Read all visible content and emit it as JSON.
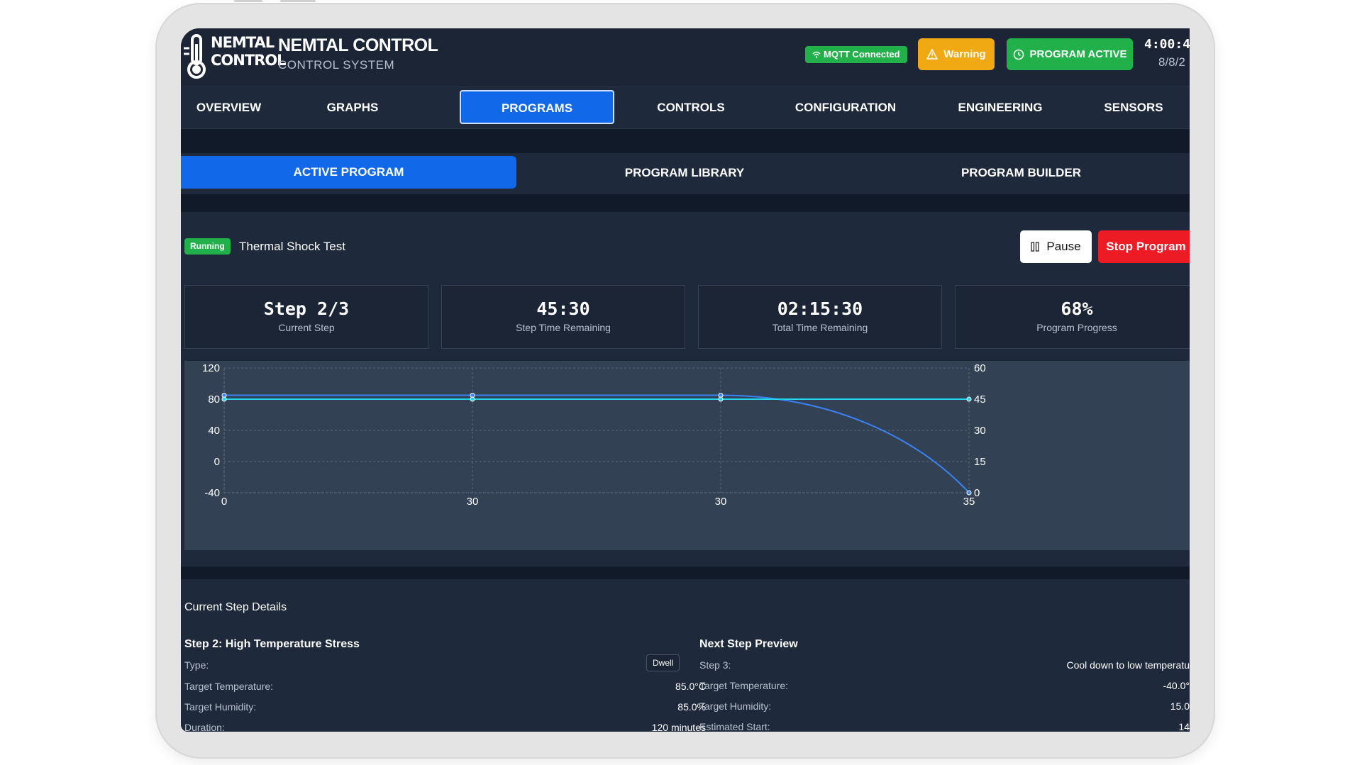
{
  "header": {
    "logo_text_line1": "NEMTAL",
    "logo_text_line2": "CONTROL",
    "title": "NEMTAL CONTROL",
    "subtitle": "CONTROL SYSTEM",
    "mqtt_status": "MQTT Connected",
    "warning_label": "Warning",
    "program_status": "PROGRAM ACTIVE",
    "time": "4:00:4",
    "date": "8/8/2"
  },
  "nav": {
    "tabs": [
      {
        "label": "OVERVIEW"
      },
      {
        "label": "GRAPHS"
      },
      {
        "label": "PROGRAMS"
      },
      {
        "label": "CONTROLS"
      },
      {
        "label": "CONFIGURATION"
      },
      {
        "label": "ENGINEERING"
      },
      {
        "label": "SENSORS"
      }
    ],
    "active": "PROGRAMS"
  },
  "subnav": {
    "tabs": [
      {
        "label": "ACTIVE PROGRAM"
      },
      {
        "label": "PROGRAM LIBRARY"
      },
      {
        "label": "PROGRAM BUILDER"
      }
    ],
    "active": "ACTIVE PROGRAM"
  },
  "program": {
    "status": "Running",
    "name": "Thermal Shock Test",
    "pause_label": "Pause",
    "stop_label": "Stop Program"
  },
  "stats": [
    {
      "value": "Step 2/3",
      "label": "Current Step"
    },
    {
      "value": "45:30",
      "label": "Step Time Remaining"
    },
    {
      "value": "02:15:30",
      "label": "Total Time Remaining"
    },
    {
      "value": "68%",
      "label": "Program Progress"
    }
  ],
  "chart_data": {
    "type": "line",
    "x_tick_labels": [
      "0",
      "30",
      "30",
      "35"
    ],
    "y_left_ticks": [
      "120",
      "80",
      "40",
      "0",
      "-40"
    ],
    "y_right_ticks": [
      "60",
      "45",
      "30",
      "15",
      "0"
    ],
    "y_left_range": [
      -40,
      120
    ],
    "y_right_range": [
      0,
      60
    ],
    "grid": true,
    "series": [
      {
        "axis": "left",
        "color": "#3b82f6",
        "points": [
          85,
          85,
          85,
          -40
        ],
        "curve": "ease-down"
      },
      {
        "axis": "right",
        "color": "#22d3ee",
        "points": [
          45,
          45,
          45,
          45
        ]
      }
    ]
  },
  "details": {
    "title": "Current Step Details",
    "current": {
      "heading": "Step 2: High Temperature Stress",
      "rows": [
        {
          "label": "Type:",
          "value": "Dwell"
        },
        {
          "label": "Target Temperature:",
          "value": "85.0°C"
        },
        {
          "label": "Target Humidity:",
          "value": "85.0%"
        },
        {
          "label": "Duration:",
          "value": "120 minutes"
        }
      ]
    },
    "next": {
      "heading": "Next Step Preview",
      "rows": [
        {
          "label": "Step 3:",
          "value": "Cool down to low temperatu"
        },
        {
          "label": "Target Temperature:",
          "value": "-40.0°"
        },
        {
          "label": "Target Humidity:",
          "value": "15.0"
        },
        {
          "label": "Estimated Start:",
          "value": "14"
        }
      ]
    }
  },
  "colors": {
    "accent": "#1168e8",
    "success": "#22b04b",
    "warning": "#f0a813",
    "danger": "#ed1c24"
  }
}
